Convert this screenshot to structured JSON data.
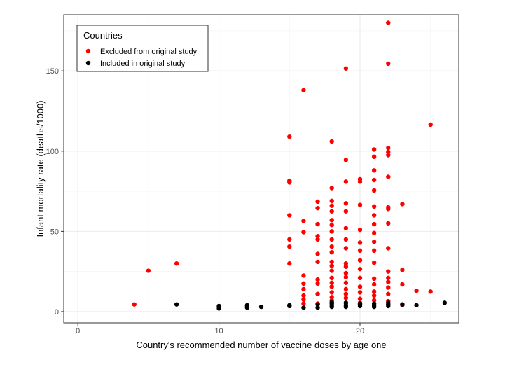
{
  "chart_data": {
    "type": "scatter",
    "title": "",
    "xlabel": "Country's recommended number of vaccine doses by age one",
    "ylabel": "Infant mortality rate (deaths/1000)",
    "xlim": [
      -1,
      27
    ],
    "ylim": [
      -7,
      185
    ],
    "x_ticks": [
      0,
      10,
      20
    ],
    "y_ticks": [
      0,
      50,
      100,
      150
    ],
    "x_tick_labels": [
      "0",
      "10",
      "20"
    ],
    "y_tick_labels": [
      "0",
      "50",
      "100",
      "150"
    ],
    "grid": true,
    "legend": {
      "title": "Countries",
      "placement": "top-left",
      "entries": [
        "Excluded from original study",
        "Included in original study"
      ]
    },
    "series": [
      {
        "name": "Excluded from original study",
        "color": "#ff0000",
        "points": [
          [
            4,
            4.5
          ],
          [
            5,
            25.5
          ],
          [
            7,
            30
          ],
          [
            15,
            109
          ],
          [
            15,
            81.5
          ],
          [
            15,
            80.5
          ],
          [
            15,
            60
          ],
          [
            15,
            45
          ],
          [
            15,
            40.5
          ],
          [
            15,
            30
          ],
          [
            16,
            138
          ],
          [
            16,
            56.5
          ],
          [
            16,
            49.5
          ],
          [
            16,
            22.5
          ],
          [
            16,
            17.5
          ],
          [
            16,
            14
          ],
          [
            16,
            10
          ],
          [
            16,
            7.5
          ],
          [
            16,
            5
          ],
          [
            17,
            68.5
          ],
          [
            17,
            64.5
          ],
          [
            17,
            54.5
          ],
          [
            17,
            47
          ],
          [
            17,
            45
          ],
          [
            17,
            36
          ],
          [
            17,
            31
          ],
          [
            17,
            20
          ],
          [
            17,
            17.5
          ],
          [
            17,
            11
          ],
          [
            17,
            5
          ],
          [
            18,
            106
          ],
          [
            18,
            77
          ],
          [
            18,
            69
          ],
          [
            18,
            66
          ],
          [
            18,
            62.5
          ],
          [
            18,
            57
          ],
          [
            18,
            54
          ],
          [
            18,
            50
          ],
          [
            18,
            45
          ],
          [
            18,
            40.5
          ],
          [
            18,
            37
          ],
          [
            18,
            31
          ],
          [
            18,
            28.5
          ],
          [
            18,
            25.5
          ],
          [
            18,
            21
          ],
          [
            18,
            18
          ],
          [
            18,
            15.5
          ],
          [
            18,
            12
          ],
          [
            18,
            9
          ],
          [
            18,
            7
          ],
          [
            19,
            151.5
          ],
          [
            19,
            94.5
          ],
          [
            19,
            81
          ],
          [
            19,
            67.5
          ],
          [
            19,
            62.5
          ],
          [
            19,
            52
          ],
          [
            19,
            45
          ],
          [
            19,
            39.5
          ],
          [
            19,
            30
          ],
          [
            19,
            28
          ],
          [
            19,
            24
          ],
          [
            19,
            21.5
          ],
          [
            19,
            18
          ],
          [
            19,
            14
          ],
          [
            19,
            11
          ],
          [
            19,
            8.5
          ],
          [
            19,
            5.5
          ],
          [
            20,
            82.5
          ],
          [
            20,
            81
          ],
          [
            20,
            66.5
          ],
          [
            20,
            51
          ],
          [
            20,
            43
          ],
          [
            20,
            38
          ],
          [
            20,
            32
          ],
          [
            20,
            26.5
          ],
          [
            20,
            21
          ],
          [
            20,
            15.5
          ],
          [
            20,
            12
          ],
          [
            20,
            8
          ],
          [
            20,
            5.5
          ],
          [
            21,
            101
          ],
          [
            21,
            96.5
          ],
          [
            21,
            88
          ],
          [
            21,
            82
          ],
          [
            21,
            75.5
          ],
          [
            21,
            65.5
          ],
          [
            21,
            60
          ],
          [
            21,
            54.5
          ],
          [
            21,
            49
          ],
          [
            21,
            43.5
          ],
          [
            21,
            38
          ],
          [
            21,
            30.5
          ],
          [
            21,
            20.5
          ],
          [
            21,
            17
          ],
          [
            21,
            12.5
          ],
          [
            21,
            10
          ],
          [
            21,
            7
          ],
          [
            22,
            180
          ],
          [
            22,
            154.5
          ],
          [
            22,
            102
          ],
          [
            22,
            99.5
          ],
          [
            22,
            97.5
          ],
          [
            22,
            84
          ],
          [
            22,
            65
          ],
          [
            22,
            64
          ],
          [
            22,
            55
          ],
          [
            22,
            39.5
          ],
          [
            22,
            25
          ],
          [
            22,
            21
          ],
          [
            22,
            18.5
          ],
          [
            22,
            15
          ],
          [
            22,
            11
          ],
          [
            22,
            6.5
          ],
          [
            23,
            67
          ],
          [
            23,
            26
          ],
          [
            23,
            17
          ],
          [
            23,
            4
          ],
          [
            24,
            13
          ],
          [
            25,
            12.5
          ],
          [
            25,
            116.5
          ]
        ]
      },
      {
        "name": "Included in original study",
        "color": "#000000",
        "points": [
          [
            7,
            4.5
          ],
          [
            10,
            3
          ],
          [
            10,
            2
          ],
          [
            10,
            3.5
          ],
          [
            12,
            3.5
          ],
          [
            12,
            2.5
          ],
          [
            12,
            4
          ],
          [
            13,
            3
          ],
          [
            15,
            3.5
          ],
          [
            15,
            4
          ],
          [
            16,
            2.5
          ],
          [
            17,
            2.5
          ],
          [
            17,
            4.5
          ],
          [
            18,
            3
          ],
          [
            18,
            4
          ],
          [
            18,
            5
          ],
          [
            18,
            6
          ],
          [
            19,
            3
          ],
          [
            19,
            4
          ],
          [
            19,
            5.5
          ],
          [
            20,
            3.5
          ],
          [
            20,
            4.5
          ],
          [
            20,
            5
          ],
          [
            21,
            3
          ],
          [
            21,
            4
          ],
          [
            21,
            5
          ],
          [
            22,
            3.5
          ],
          [
            22,
            4.5
          ],
          [
            22,
            5.5
          ],
          [
            23,
            4.5
          ],
          [
            24,
            4
          ],
          [
            26,
            5.5
          ]
        ]
      }
    ]
  }
}
